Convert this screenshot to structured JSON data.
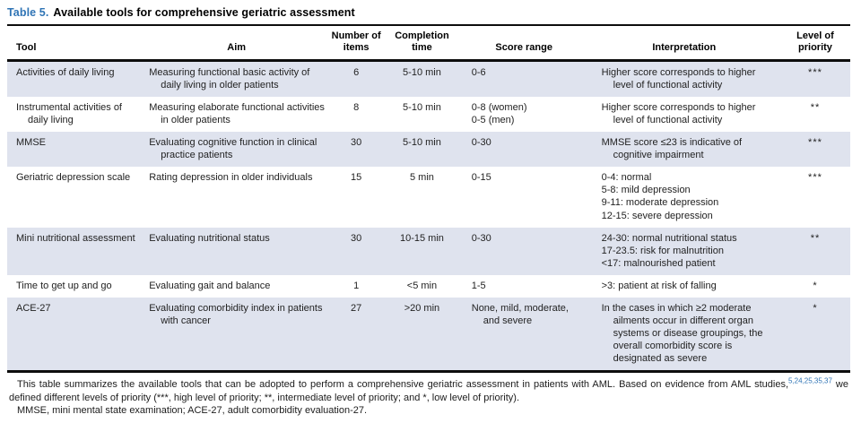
{
  "title": {
    "label": "Table 5.",
    "text": "Available tools for comprehensive geriatric assessment"
  },
  "colors": {
    "accent_blue": "#2f74b5",
    "row_shading": "#dfe3ee",
    "rule_black": "#0d0d0d"
  },
  "table": {
    "columns": [
      {
        "id": "tool",
        "label": "Tool"
      },
      {
        "id": "aim",
        "label": "Aim"
      },
      {
        "id": "items",
        "label": "Number of items"
      },
      {
        "id": "time",
        "label": "Completion time"
      },
      {
        "id": "score",
        "label": "Score range"
      },
      {
        "id": "interpretation",
        "label": "Interpretation"
      },
      {
        "id": "priority",
        "label": "Level of priority"
      }
    ],
    "rows": [
      {
        "tool": "Activities of daily living",
        "aim": "Measuring functional basic activity of daily living in older patients",
        "items": "6",
        "time": "5-10 min",
        "score": "0-6",
        "interpretation": "Higher score corresponds to higher level of functional activity",
        "priority": "***"
      },
      {
        "tool": "Instrumental activities of daily living",
        "aim": "Measuring elaborate functional activities in older patients",
        "items": "8",
        "time": "5-10 min",
        "score": [
          "0-8 (women)",
          "0-5 (men)"
        ],
        "interpretation": "Higher score corresponds to higher level of functional activity",
        "priority": "**"
      },
      {
        "tool": "MMSE",
        "aim": "Evaluating cognitive function in clinical practice patients",
        "items": "30",
        "time": "5-10 min",
        "score": "0-30",
        "interpretation": "MMSE score ≤23 is indicative of cognitive impairment",
        "priority": "***"
      },
      {
        "tool": "Geriatric depression scale",
        "aim": "Rating depression in older individuals",
        "items": "15",
        "time": "5 min",
        "score": "0-15",
        "interpretation": [
          "0-4: normal",
          "5-8: mild depression",
          "9-11: moderate depression",
          "12-15: severe depression"
        ],
        "priority": "***"
      },
      {
        "tool": "Mini nutritional assessment",
        "aim": "Evaluating nutritional status",
        "items": "30",
        "time": "10-15 min",
        "score": "0-30",
        "interpretation": [
          "24-30: normal nutritional status",
          "17-23.5: risk for malnutrition",
          "<17: malnourished patient"
        ],
        "priority": "**"
      },
      {
        "tool": "Time to get up and go",
        "aim": "Evaluating gait and balance",
        "items": "1",
        "time": "<5 min",
        "score": "1-5",
        "interpretation": ">3: patient at risk of falling",
        "priority": "*"
      },
      {
        "tool": "ACE-27",
        "aim": "Evaluating comorbidity index in patients with cancer",
        "items": "27",
        "time": ">20 min",
        "score": "None, mild, moderate, and severe",
        "interpretation": "In the cases in which ≥2 moderate ailments occur in different organ systems or disease groupings, the overall comorbidity score is designated as severe",
        "priority": "*"
      }
    ]
  },
  "footnote": {
    "body_before": "This table summarizes the available tools that can be adopted to perform a comprehensive geriatric assessment in patients with AML. Based on evidence from AML studies,",
    "citations": "5,24,25,35,37",
    "body_after": " we defined different levels of priority (***, high level of priority; **, intermediate level of priority; and *, low level of priority).",
    "abbreviations": "MMSE, mini mental state examination; ACE-27, adult comorbidity evaluation-27."
  }
}
